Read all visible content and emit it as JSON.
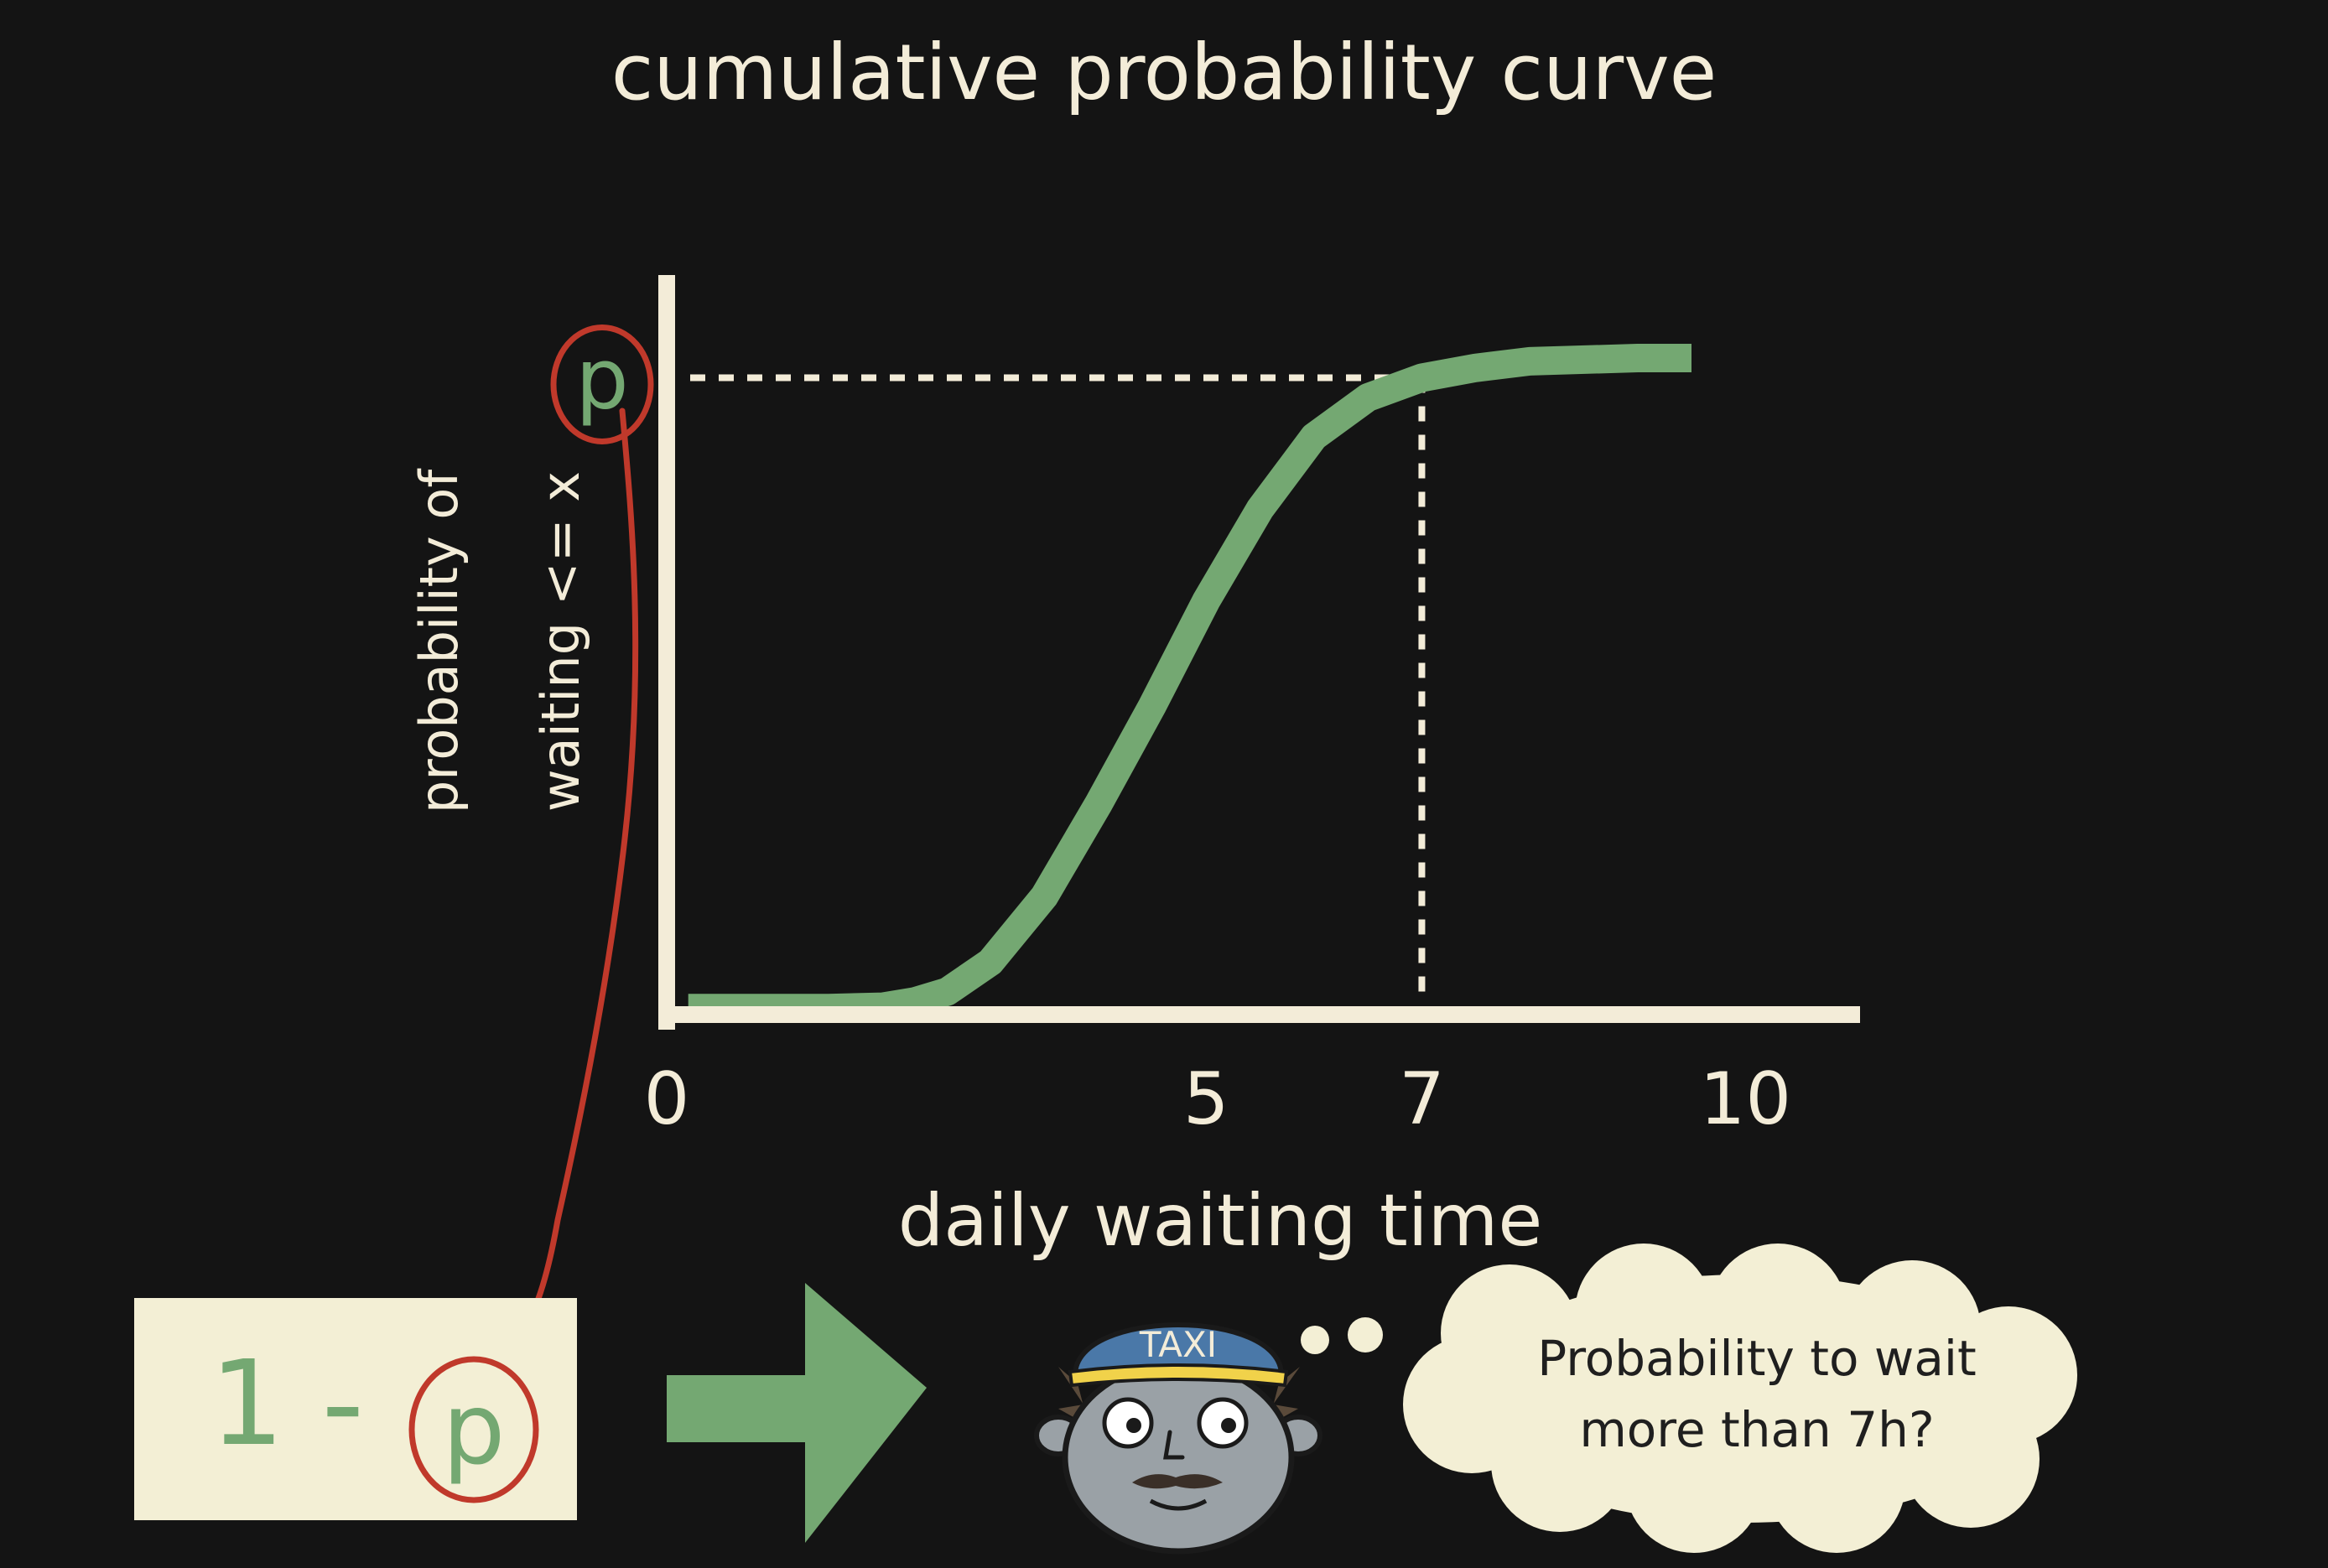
{
  "chart_data": {
    "type": "line",
    "title": "cumulative probability curve",
    "xlabel": "daily waiting time",
    "ylabel_line1": "probability of",
    "ylabel_line2": "waiting <= x",
    "xticks": [
      "0",
      "5",
      "7",
      "10"
    ],
    "xlim": [
      0,
      11.14
    ],
    "ylim": [
      0,
      1.06
    ],
    "grid": false,
    "series": [
      {
        "color": "#74a872",
        "x": [
          0.2,
          1.0,
          1.5,
          2.0,
          2.3,
          2.6,
          3.0,
          3.5,
          4.0,
          4.5,
          5.0,
          5.5,
          6.0,
          6.5,
          7.0,
          7.5,
          8.0,
          9.0,
          9.5
        ],
        "y": [
          0.01,
          0.01,
          0.01,
          0.012,
          0.02,
          0.035,
          0.08,
          0.18,
          0.32,
          0.47,
          0.63,
          0.77,
          0.88,
          0.94,
          0.97,
          0.985,
          0.995,
          1.0,
          1.0
        ]
      }
    ],
    "marker": {
      "x": 7,
      "y": 0.97,
      "label": "p",
      "color": "#74a872"
    }
  },
  "formula": {
    "prefix": "1 -",
    "symbol": "p"
  },
  "speech": {
    "line1": "Probability to wait",
    "line2": "more than 7h?"
  },
  "cap": {
    "text": "TAXI"
  },
  "colors": {
    "background": "#141414",
    "chalk": "#f3ecd8",
    "green": "#74a872",
    "red": "#c0392b",
    "box": "#f3efd5"
  }
}
